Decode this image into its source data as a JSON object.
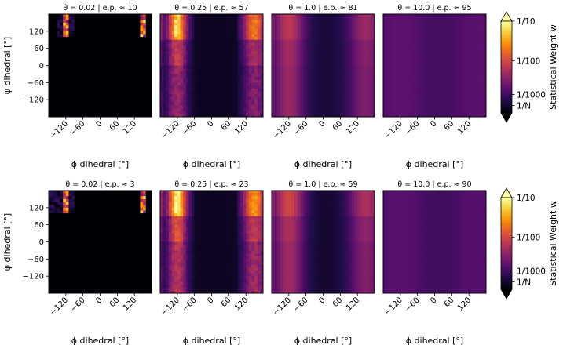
{
  "figure": {
    "colorbar_label": "Statistical Weight w",
    "colorbar_ticks": [
      "1/10",
      "1/100",
      "1/1000",
      "1/N"
    ]
  },
  "chart_data": {
    "type": "heatmap",
    "colormap": "inferno",
    "xlabel": "ϕ dihedral [°]",
    "ylabel": "ψ dihedral [°]",
    "x_ticks": [
      "−120",
      "−60",
      "0",
      "60",
      "120"
    ],
    "y_ticks": [
      "120",
      "60",
      "0",
      "−60",
      "−120"
    ],
    "xlim": [
      -180,
      180
    ],
    "ylim": [
      -180,
      180
    ],
    "colorbar": {
      "label": "Statistical Weight w",
      "ticks": [
        "1/10",
        "1/100",
        "1/1000",
        "1/N"
      ],
      "scale": "log"
    },
    "panels": [
      {
        "title": "θ = 0.02 | e.p. ≈ 10",
        "theta": 0.02,
        "ep": 10,
        "row": 0
      },
      {
        "title": "θ = 0.25 | e.p. ≈ 57",
        "theta": 0.25,
        "ep": 57,
        "row": 0
      },
      {
        "title": "θ = 1.0 | e.p. ≈ 81",
        "theta": 1.0,
        "ep": 81,
        "row": 0
      },
      {
        "title": "θ = 10.0 | e.p. ≈ 95",
        "theta": 10.0,
        "ep": 95,
        "row": 0
      },
      {
        "title": "θ = 0.02 | e.p. ≈ 3",
        "theta": 0.02,
        "ep": 3,
        "row": 1
      },
      {
        "title": "θ = 0.25 | e.p. ≈ 23",
        "theta": 0.25,
        "ep": 23,
        "row": 1
      },
      {
        "title": "θ = 1.0 | e.p. ≈ 59",
        "theta": 1.0,
        "ep": 59,
        "row": 1
      },
      {
        "title": "θ = 10.0 | e.p. ≈ 90",
        "theta": 10.0,
        "ep": 90,
        "row": 1
      }
    ]
  }
}
